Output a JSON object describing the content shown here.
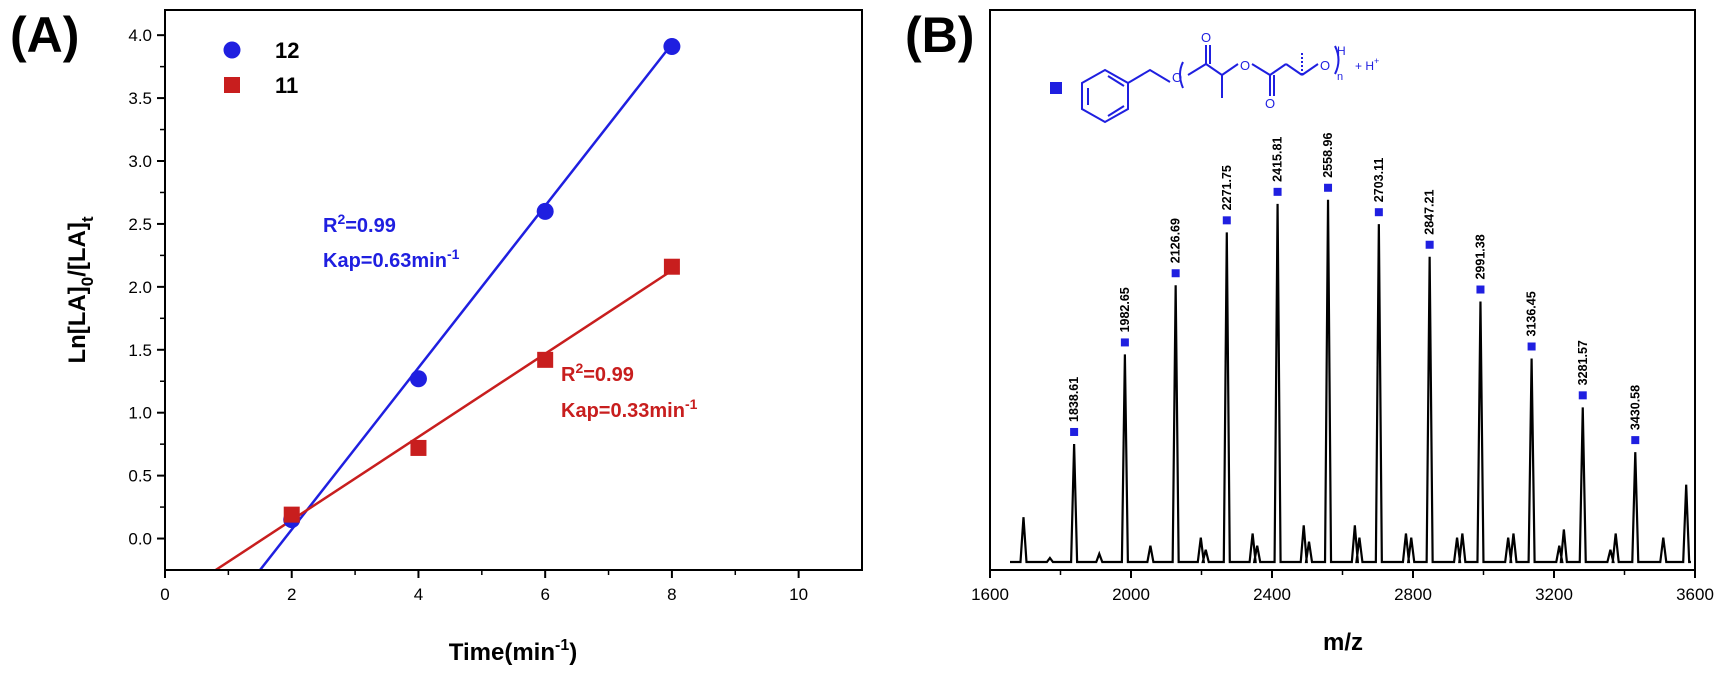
{
  "colors": {
    "blue": "#1f1fe0",
    "red": "#c81e1e",
    "axis": "#000000"
  },
  "chart_data": [
    {
      "type": "scatter",
      "panel_label": "(A)",
      "xlabel": "Time(min-1)",
      "xlabel_main": "Time(min",
      "xlabel_sup": "-1",
      "xlabel_end": ")",
      "ylabel": "Ln[LA]0/[LA]t",
      "ylabel_main": "Ln[LA]",
      "ylabel_sub1": "0",
      "ylabel_mid": "/[LA]",
      "ylabel_sub2": "t",
      "xlim": [
        0,
        11
      ],
      "ylim": [
        -0.25,
        4.2
      ],
      "x_ticks": [
        "0",
        "2",
        "4",
        "6",
        "8",
        "10"
      ],
      "y_ticks": [
        "0.0",
        "0.5",
        "1.0",
        "1.5",
        "2.0",
        "2.5",
        "3.0",
        "3.5",
        "4.0"
      ],
      "grid": false,
      "legend_position": "top-left",
      "series": [
        {
          "name": "12",
          "marker": "circle",
          "color": "#1f1fe0",
          "x": [
            2,
            4,
            6,
            8
          ],
          "y": [
            0.15,
            1.27,
            2.6,
            3.91
          ],
          "fit_line": {
            "x": [
              1.5,
              8
            ],
            "y": [
              -0.25,
              3.93
            ]
          },
          "annotation": {
            "r2": "R2=0.99",
            "r2_main": "R",
            "r2_sup": "2",
            "r2_end": "=0.99",
            "kap": "Kap=0.63min-1",
            "kap_main": "Kap=0.63min",
            "kap_sup": "-1"
          }
        },
        {
          "name": "11",
          "marker": "square",
          "color": "#c81e1e",
          "x": [
            2,
            4,
            6,
            8
          ],
          "y": [
            0.19,
            0.72,
            1.42,
            2.16
          ],
          "fit_line": {
            "x": [
              0.8,
              8
            ],
            "y": [
              -0.25,
              2.13
            ]
          },
          "annotation": {
            "r2": "R2=0.99",
            "r2_main": "R",
            "r2_sup": "2",
            "r2_end": "=0.99",
            "kap": "Kap=0.33min-1",
            "kap_main": "Kap=0.33min",
            "kap_sup": "-1"
          }
        }
      ]
    },
    {
      "type": "line",
      "panel_label": "(B)",
      "xlabel": "m/z",
      "ylabel": "",
      "xlim": [
        1600,
        3600
      ],
      "ylim": [
        0,
        100
      ],
      "x_ticks": [
        "1600",
        "2000",
        "2400",
        "2800",
        "3200",
        "3600"
      ],
      "grid": false,
      "legend_marker": "square",
      "legend_color": "#1f1fe0",
      "structure_labels": {
        "H": "H",
        "n": "n",
        "plus": "+ H",
        "charge": "+"
      },
      "peaks": [
        {
          "label": "1838.61",
          "x": 1838.61,
          "y": 29
        },
        {
          "label": "1982.65",
          "x": 1982.65,
          "y": 51
        },
        {
          "label": "2126.69",
          "x": 2126.69,
          "y": 68
        },
        {
          "label": "2271.75",
          "x": 2271.75,
          "y": 81
        },
        {
          "label": "2415.81",
          "x": 2415.81,
          "y": 88
        },
        {
          "label": "2558.96",
          "x": 2558.96,
          "y": 89
        },
        {
          "label": "2703.11",
          "x": 2703.11,
          "y": 83
        },
        {
          "label": "2847.21",
          "x": 2847.21,
          "y": 75
        },
        {
          "label": "2991.38",
          "x": 2991.38,
          "y": 64
        },
        {
          "label": "3136.45",
          "x": 3136.45,
          "y": 50
        },
        {
          "label": "3281.57",
          "x": 3281.57,
          "y": 38
        },
        {
          "label": "3430.58",
          "x": 3430.58,
          "y": 27
        }
      ],
      "minor_peaks": [
        {
          "x": 1695,
          "y": 11
        },
        {
          "x": 1770,
          "y": 1
        },
        {
          "x": 1910,
          "y": 2
        },
        {
          "x": 2055,
          "y": 4
        },
        {
          "x": 2198,
          "y": 6
        },
        {
          "x": 2212,
          "y": 3
        },
        {
          "x": 2345,
          "y": 7
        },
        {
          "x": 2358,
          "y": 4
        },
        {
          "x": 2490,
          "y": 9
        },
        {
          "x": 2505,
          "y": 5
        },
        {
          "x": 2635,
          "y": 9
        },
        {
          "x": 2648,
          "y": 6
        },
        {
          "x": 2780,
          "y": 7
        },
        {
          "x": 2795,
          "y": 6
        },
        {
          "x": 2925,
          "y": 6
        },
        {
          "x": 2940,
          "y": 7
        },
        {
          "x": 3070,
          "y": 6
        },
        {
          "x": 3085,
          "y": 7
        },
        {
          "x": 3215,
          "y": 4
        },
        {
          "x": 3228,
          "y": 8
        },
        {
          "x": 3360,
          "y": 3
        },
        {
          "x": 3375,
          "y": 7
        },
        {
          "x": 3510,
          "y": 6
        },
        {
          "x": 3575,
          "y": 19
        }
      ]
    }
  ]
}
